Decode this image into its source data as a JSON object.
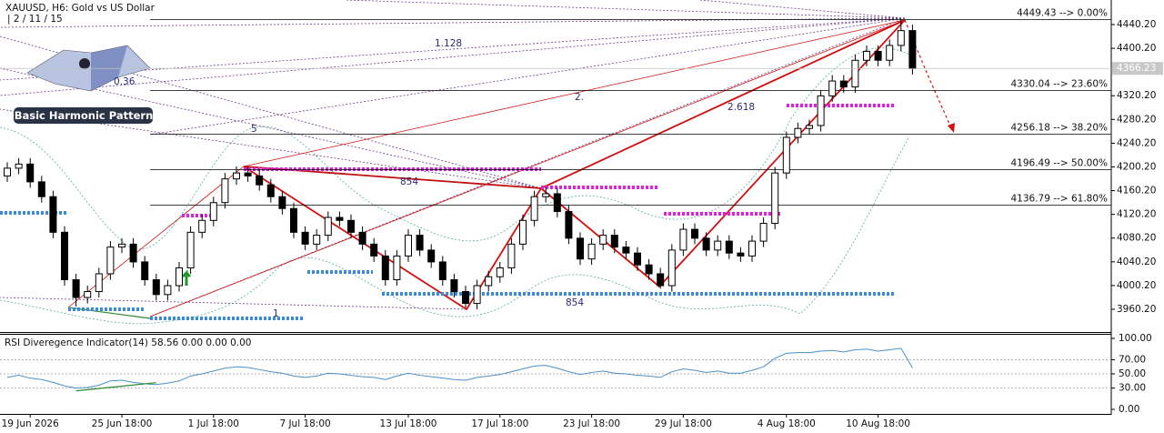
{
  "chart_data": [
    {
      "type": "candlestick",
      "title": "XAUUSD, H6:  Gold vs US Dollar",
      "subtitle": "| 2 / 11 / 15",
      "logo_text": "Basic Harmonic Pattern",
      "annotations": [
        "1.128",
        "0.36",
        "2.",
        "5",
        "854",
        "2.618",
        "854",
        "1"
      ],
      "categories": [
        null,
        null,
        "19 Jun 2026",
        null,
        null,
        null,
        null,
        null,
        null,
        null,
        "25 Jun 18:00",
        null,
        null,
        null,
        null,
        null,
        null,
        null,
        "1 Jul 18:00",
        null,
        null,
        null,
        null,
        null,
        null,
        null,
        "7 Jul 18:00",
        null,
        null,
        null,
        null,
        null,
        null,
        null,
        null,
        "13 Jul 18:00",
        null,
        null,
        null,
        null,
        null,
        null,
        null,
        "17 Jul 18:00",
        null,
        null,
        null,
        null,
        null,
        null,
        null,
        "23 Jul 18:00",
        null,
        null,
        null,
        null,
        null,
        null,
        null,
        "29 Jul 18:00",
        null,
        null,
        null,
        null,
        null,
        null,
        null,
        null,
        "4 Aug 18:00",
        null,
        null,
        null,
        null,
        null,
        null,
        null,
        "10 Aug 18:00",
        null,
        null,
        null
      ],
      "open": [
        4185,
        4198,
        4205,
        4175,
        4150,
        4090,
        4010,
        3980,
        3990,
        4020,
        4065,
        4070,
        4040,
        4010,
        3985,
        4000,
        4030,
        4090,
        4110,
        4140,
        4180,
        4190,
        4185,
        4170,
        4150,
        4130,
        4090,
        4070,
        4085,
        4115,
        4110,
        4090,
        4070,
        4050,
        4010,
        4050,
        4085,
        4060,
        4040,
        4010,
        3990,
        3970,
        4000,
        4015,
        4030,
        4070,
        4110,
        4150,
        4155,
        4125,
        4080,
        4045,
        4070,
        4085,
        4065,
        4055,
        4035,
        4020,
        4000,
        4060,
        4095,
        4080,
        4060,
        4075,
        4055,
        4050,
        4075,
        4105,
        4190,
        4250,
        4265,
        4270,
        4320,
        4345,
        4335,
        4380,
        4395,
        4380,
        4405,
        4430
      ],
      "high": [
        4208,
        4215,
        4215,
        4185,
        4160,
        4100,
        4020,
        4000,
        4030,
        4075,
        4080,
        4080,
        4050,
        4020,
        4010,
        4040,
        4100,
        4120,
        4150,
        4190,
        4201,
        4200,
        4195,
        4180,
        4160,
        4140,
        4100,
        4095,
        4125,
        4125,
        4120,
        4100,
        4080,
        4060,
        4060,
        4095,
        4095,
        4070,
        4050,
        4020,
        4000,
        4010,
        4025,
        4040,
        4080,
        4120,
        4160,
        4166,
        4165,
        4135,
        4090,
        4080,
        4095,
        4095,
        4075,
        4065,
        4045,
        4030,
        4070,
        4105,
        4105,
        4090,
        4085,
        4085,
        4065,
        4085,
        4115,
        4200,
        4260,
        4275,
        4280,
        4330,
        4355,
        4355,
        4390,
        4405,
        4405,
        4415,
        4449,
        4440
      ],
      "low": [
        4175,
        4188,
        4165,
        4140,
        4080,
        4000,
        3965,
        3970,
        3980,
        4010,
        4055,
        4030,
        4000,
        3975,
        3975,
        3990,
        4020,
        4080,
        4100,
        4130,
        4170,
        4175,
        4160,
        4140,
        4120,
        4080,
        4060,
        4060,
        4075,
        4100,
        4080,
        4060,
        4040,
        4000,
        4000,
        4040,
        4050,
        4030,
        4000,
        3980,
        3963,
        3960,
        3990,
        4005,
        4020,
        4060,
        4100,
        4140,
        4115,
        4070,
        4035,
        4035,
        4060,
        4055,
        4045,
        4025,
        4010,
        3995,
        3990,
        4050,
        4070,
        4050,
        4050,
        4045,
        4040,
        4040,
        4065,
        4095,
        4180,
        4240,
        4255,
        4260,
        4310,
        4325,
        4325,
        4370,
        4370,
        4370,
        4395,
        4356
      ],
      "close": [
        4198,
        4205,
        4175,
        4150,
        4090,
        4010,
        3980,
        3990,
        4020,
        4065,
        4070,
        4040,
        4010,
        3985,
        4000,
        4030,
        4090,
        4110,
        4140,
        4180,
        4190,
        4185,
        4170,
        4150,
        4130,
        4090,
        4070,
        4085,
        4115,
        4110,
        4090,
        4070,
        4050,
        4010,
        4050,
        4085,
        4060,
        4040,
        4010,
        3990,
        3970,
        4000,
        4015,
        4030,
        4070,
        4110,
        4150,
        4155,
        4125,
        4080,
        4045,
        4070,
        4085,
        4065,
        4055,
        4035,
        4020,
        4000,
        4060,
        4095,
        4080,
        4060,
        4075,
        4055,
        4050,
        4075,
        4105,
        4190,
        4250,
        4265,
        4270,
        4320,
        4345,
        4335,
        4380,
        4395,
        4380,
        4405,
        4430,
        4366
      ],
      "ylim": [
        3921.8,
        4481.6
      ],
      "yticks": [
        {
          "value": 4440.2,
          "label": "4440.20"
        },
        {
          "value": 4400.2,
          "label": "4400.20"
        },
        {
          "value": 4320.2,
          "label": "4320.20"
        },
        {
          "value": 4280.2,
          "label": "4280.20"
        },
        {
          "value": 4240.2,
          "label": "4240.20"
        },
        {
          "value": 4200.2,
          "label": "4200.20"
        },
        {
          "value": 4160.2,
          "label": "4160.20"
        },
        {
          "value": 4120.2,
          "label": "4120.20"
        },
        {
          "value": 4080.2,
          "label": "4080.20"
        },
        {
          "value": 4040.2,
          "label": "4040.20"
        },
        {
          "value": 4000.2,
          "label": "4000.20"
        },
        {
          "value": 3960.2,
          "label": "3960.20"
        }
      ],
      "last_price": 4366.23,
      "fib_levels": [
        {
          "value": 4449.43,
          "label": "4449.43 --> 0.00%"
        },
        {
          "value": 4330.04,
          "label": "4330.04 --> 23.60%"
        },
        {
          "value": 4256.18,
          "label": "4256.18 --> 38.20%"
        },
        {
          "value": 4196.49,
          "label": "4196.49 --> 50.00%"
        },
        {
          "value": 4136.79,
          "label": "4136.79 --> 61.80%"
        }
      ],
      "bull_color": "#ffffff",
      "bear_color": "#000000"
    },
    {
      "type": "line",
      "title": "RSI Diveregence Indicator(14) 58.56 0.00 0.00 0.00",
      "series": [
        {
          "name": "RSI",
          "color": "#4a90c8",
          "values": [
            45,
            48,
            44,
            42,
            38,
            33,
            30,
            31,
            34,
            40,
            41,
            38,
            36,
            35,
            37,
            40,
            47,
            50,
            54,
            58,
            60,
            59,
            56,
            53,
            51,
            47,
            45,
            47,
            51,
            50,
            48,
            46,
            45,
            42,
            47,
            51,
            48,
            46,
            44,
            42,
            41,
            45,
            47,
            49,
            53,
            57,
            61,
            62,
            58,
            53,
            49,
            52,
            54,
            51,
            50,
            48,
            47,
            45,
            53,
            57,
            55,
            52,
            54,
            51,
            51,
            55,
            60,
            72,
            79,
            80,
            80,
            82,
            83,
            81,
            84,
            85,
            82,
            84,
            86,
            58.56
          ]
        }
      ],
      "ylim": [
        0,
        100
      ],
      "yticks": [
        {
          "value": 100,
          "label": "100.00"
        },
        {
          "value": 70,
          "label": "70.00"
        },
        {
          "value": 50,
          "label": "50.00"
        },
        {
          "value": 30,
          "label": "30.00"
        },
        {
          "value": 0,
          "label": "0.00"
        }
      ]
    }
  ]
}
